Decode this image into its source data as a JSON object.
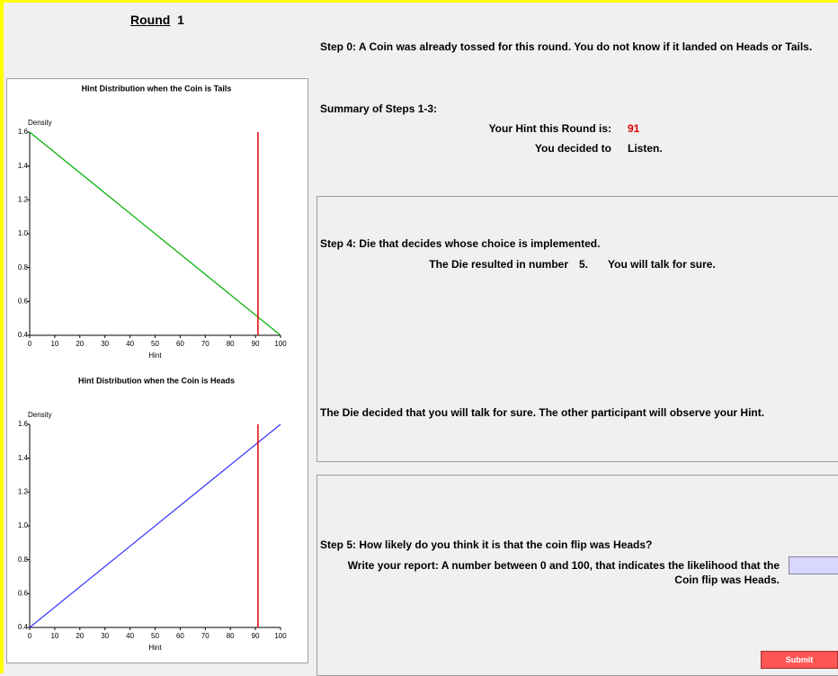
{
  "round": {
    "label": "Round",
    "number": "1"
  },
  "step0": "Step 0: A Coin was already tossed for this round. You do not know if it landed on Heads or Tails.",
  "summary": {
    "title": "Summary of Steps 1-3:",
    "hint_label": "Your Hint this Round is:",
    "hint_value": "91",
    "decision_label": "You decided to",
    "decision": "Listen."
  },
  "step4": {
    "title": "Step 4: Die that decides whose choice is implemented.",
    "die_label": "The Die resulted in number",
    "die_value": "5.",
    "die_result": "You will talk for sure.",
    "conclusion": "The Die decided that you will talk for sure. The other participant will observe your Hint."
  },
  "step5": {
    "question": "Step 5: How likely do you think it is that the coin flip was Heads?",
    "report_prompt": "Write your report: A number between 0 and 100, that indicates the likelihood that the Coin flip was Heads.",
    "submit": "Submit"
  },
  "chart_data": [
    {
      "type": "line",
      "title": "Hint Distribution when the Coin is Tails",
      "y_label": "Density",
      "x_label": "Hint",
      "x": [
        0,
        100
      ],
      "values": [
        1.6,
        0.4
      ],
      "color": "#00b000",
      "xlim": [
        0,
        100
      ],
      "ylim": [
        0.4,
        1.6
      ],
      "xticks": [
        0,
        10,
        20,
        30,
        40,
        50,
        60,
        70,
        80,
        90,
        100
      ],
      "yticks": [
        0.4,
        0.6,
        0.8,
        {
          "value": 1,
          "label": "1.0"
        },
        1.2,
        1.4,
        1.6
      ],
      "vline": {
        "x": 91,
        "color": "#e00000"
      }
    },
    {
      "type": "line",
      "title": "Hint Distribution when the Coin is Heads",
      "y_label": "Density",
      "x_label": "Hint",
      "x": [
        0,
        100
      ],
      "values": [
        0.4,
        1.6
      ],
      "color": "#3333ff",
      "xlim": [
        0,
        100
      ],
      "ylim": [
        0.4,
        1.6
      ],
      "xticks": [
        0,
        10,
        20,
        30,
        40,
        50,
        60,
        70,
        80,
        90,
        100
      ],
      "yticks": [
        0.4,
        0.6,
        0.8,
        {
          "value": 1,
          "label": "1.0"
        },
        1.2,
        1.4,
        1.6
      ],
      "vline": {
        "x": 91,
        "color": "#e00000"
      }
    }
  ]
}
